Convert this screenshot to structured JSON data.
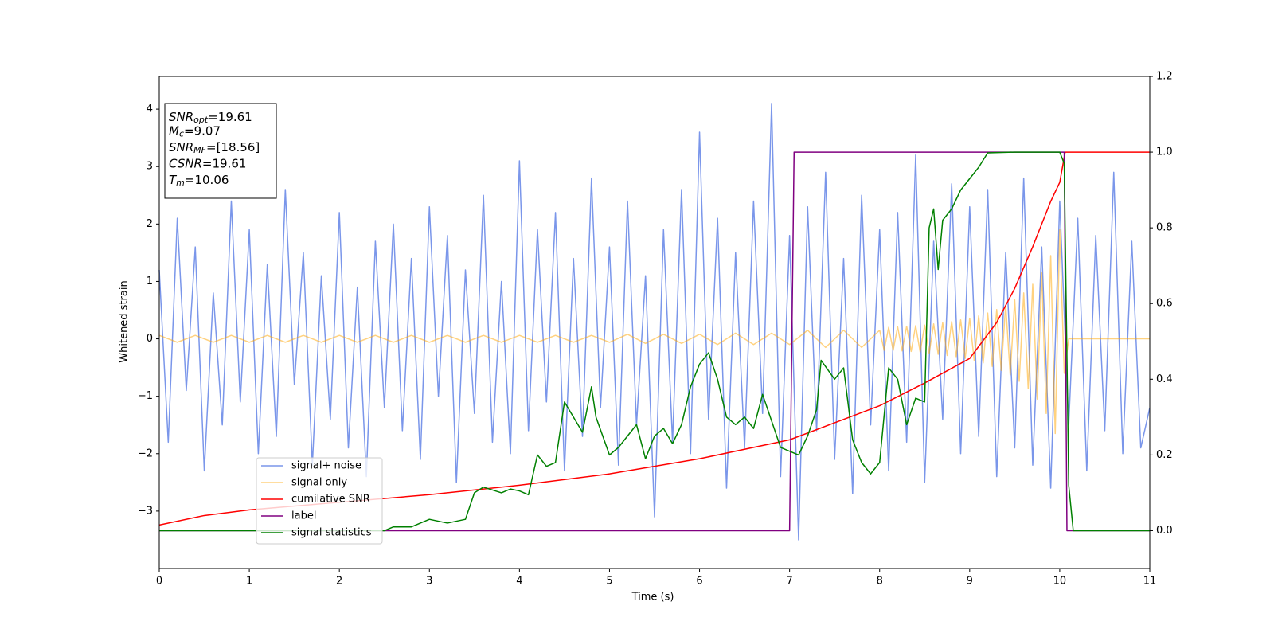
{
  "chart_data": {
    "type": "line",
    "xlabel": "Time (s)",
    "ylabel": "Whitened strain",
    "xlim": [
      0,
      11
    ],
    "xticks": [
      0,
      1,
      2,
      3,
      4,
      5,
      6,
      7,
      8,
      9,
      10,
      11
    ],
    "ylim": [
      -4,
      4.57
    ],
    "yticks": [
      {
        "value": -3,
        "label": "−3"
      },
      {
        "value": -2,
        "label": "−2"
      },
      {
        "value": -1,
        "label": "−1"
      },
      0,
      1,
      2,
      3,
      4
    ],
    "y2lim": [
      -0.1,
      1.2
    ],
    "y2ticks": [
      {
        "value": 0,
        "label": "0.0"
      },
      0.2,
      0.4,
      0.6,
      0.8,
      {
        "value": 1,
        "label": "1.0"
      },
      1.2
    ],
    "legend": "lower left",
    "annotation": [
      {
        "text": "SNR",
        "sub": "opt",
        "rest": "=19.61"
      },
      {
        "text": "M",
        "sub": "c",
        "rest": "=9.07"
      },
      {
        "text": "SNR",
        "sub": "MF",
        "rest": "=[18.56]"
      },
      {
        "text": "CSNR",
        "rest": "=19.61"
      },
      {
        "text": "T",
        "sub": "m",
        "rest": "=10.06"
      }
    ],
    "series": [
      {
        "name": "signal+ noise",
        "color": "#4169e1",
        "x": [
          0,
          0.1,
          0.2,
          0.3,
          0.4,
          0.5,
          0.6,
          0.7,
          0.8,
          0.9,
          1,
          1.1,
          1.2,
          1.3,
          1.4,
          1.5,
          1.6,
          1.7,
          1.8,
          1.9,
          2,
          2.1,
          2.2,
          2.3,
          2.4,
          2.5,
          2.6,
          2.7,
          2.8,
          2.9,
          3,
          3.1,
          3.2,
          3.3,
          3.4,
          3.5,
          3.6,
          3.7,
          3.8,
          3.9,
          4,
          4.1,
          4.2,
          4.3,
          4.4,
          4.5,
          4.6,
          4.7,
          4.8,
          4.9,
          5,
          5.1,
          5.2,
          5.3,
          5.4,
          5.5,
          5.6,
          5.7,
          5.8,
          5.9,
          6,
          6.1,
          6.2,
          6.3,
          6.4,
          6.5,
          6.6,
          6.7,
          6.8,
          6.9,
          7,
          7.1,
          7.2,
          7.3,
          7.4,
          7.5,
          7.6,
          7.7,
          7.8,
          7.9,
          8,
          8.1,
          8.2,
          8.3,
          8.4,
          8.5,
          8.6,
          8.7,
          8.8,
          8.9,
          9,
          9.1,
          9.2,
          9.3,
          9.4,
          9.5,
          9.6,
          9.7,
          9.8,
          9.9,
          10,
          10.1,
          10.2,
          10.3,
          10.4,
          10.5,
          10.6,
          10.7,
          10.8,
          10.9,
          11
        ],
        "values": [
          1.2,
          -1.8,
          2.1,
          -0.9,
          1.6,
          -2.3,
          0.8,
          -1.5,
          2.4,
          -1.1,
          1.9,
          -2.0,
          1.3,
          -1.7,
          2.6,
          -0.8,
          1.5,
          -2.2,
          1.1,
          -1.4,
          2.2,
          -1.9,
          0.9,
          -2.4,
          1.7,
          -1.2,
          2.0,
          -1.6,
          1.4,
          -2.1,
          2.3,
          -1.0,
          1.8,
          -2.5,
          1.2,
          -1.3,
          2.5,
          -1.8,
          1.0,
          -2.0,
          3.1,
          -1.6,
          1.9,
          -1.1,
          2.2,
          -2.3,
          1.4,
          -1.7,
          2.8,
          -1.2,
          1.6,
          -2.2,
          2.4,
          -1.5,
          1.1,
          -3.1,
          1.9,
          -1.8,
          2.6,
          -2.0,
          3.6,
          -1.4,
          2.1,
          -2.6,
          1.5,
          -1.9,
          2.4,
          -1.3,
          4.1,
          -2.4,
          1.8,
          -3.5,
          2.3,
          -1.6,
          2.9,
          -2.1,
          1.4,
          -2.7,
          2.5,
          -1.5,
          1.9,
          -2.3,
          2.2,
          -1.8,
          3.2,
          -2.5,
          1.7,
          -1.4,
          2.7,
          -2.0,
          2.3,
          -1.7,
          2.6,
          -2.4,
          1.5,
          -1.9,
          2.8,
          -2.2,
          1.6,
          -2.6,
          2.4,
          -1.5,
          2.1,
          -2.3,
          1.8,
          -1.6,
          2.9,
          -2.0,
          1.7,
          -1.9,
          -1.2
        ]
      },
      {
        "name": "signal only",
        "color": "#ffa500",
        "x": [
          0,
          0.2,
          0.4,
          0.6,
          0.8,
          1,
          1.2,
          1.4,
          1.6,
          1.8,
          2,
          2.2,
          2.4,
          2.6,
          2.8,
          3,
          3.2,
          3.4,
          3.6,
          3.8,
          4,
          4.2,
          4.4,
          4.6,
          4.8,
          5,
          5.2,
          5.4,
          5.6,
          5.8,
          6,
          6.2,
          6.4,
          6.6,
          6.8,
          7,
          7.2,
          7.4,
          7.6,
          7.8,
          8,
          8.05,
          8.1,
          8.15,
          8.2,
          8.25,
          8.3,
          8.35,
          8.4,
          8.45,
          8.5,
          8.55,
          8.6,
          8.65,
          8.7,
          8.75,
          8.8,
          8.85,
          8.9,
          8.95,
          9,
          9.05,
          9.1,
          9.15,
          9.2,
          9.25,
          9.3,
          9.35,
          9.4,
          9.45,
          9.5,
          9.55,
          9.6,
          9.65,
          9.7,
          9.75,
          9.8,
          9.85,
          9.9,
          9.95,
          10,
          10.05,
          10.1,
          11
        ],
        "values": [
          0.06,
          -0.06,
          0.06,
          -0.06,
          0.06,
          -0.06,
          0.06,
          -0.06,
          0.06,
          -0.06,
          0.06,
          -0.06,
          0.06,
          -0.06,
          0.06,
          -0.06,
          0.06,
          -0.06,
          0.06,
          -0.06,
          0.06,
          -0.06,
          0.06,
          -0.06,
          0.06,
          -0.06,
          0.08,
          -0.08,
          0.08,
          -0.08,
          0.08,
          -0.1,
          0.1,
          -0.1,
          0.1,
          -0.1,
          0.15,
          -0.15,
          0.15,
          -0.15,
          0.15,
          -0.2,
          0.2,
          -0.2,
          0.21,
          -0.21,
          0.22,
          -0.22,
          0.23,
          -0.23,
          0.24,
          -0.25,
          0.26,
          -0.27,
          0.28,
          -0.29,
          0.3,
          -0.31,
          0.33,
          -0.34,
          0.36,
          -0.38,
          0.4,
          -0.42,
          0.45,
          -0.48,
          0.51,
          -0.55,
          0.59,
          -0.63,
          0.68,
          -0.74,
          0.8,
          -0.87,
          0.95,
          -1.05,
          1.15,
          -1.3,
          1.45,
          -1.65,
          1.9,
          -0.6,
          0,
          0
        ]
      },
      {
        "name": "cumilative SNR",
        "color": "#ff0000",
        "axis": "y2",
        "x": [
          0,
          0.5,
          1,
          2,
          3,
          4,
          5,
          6,
          7,
          8,
          8.5,
          9,
          9.3,
          9.5,
          9.7,
          9.8,
          9.9,
          10,
          10.03,
          10.06,
          10.1,
          11
        ],
        "values": [
          0.015,
          0.04,
          0.055,
          0.075,
          0.095,
          0.12,
          0.15,
          0.19,
          0.24,
          0.33,
          0.39,
          0.455,
          0.55,
          0.64,
          0.75,
          0.81,
          0.87,
          0.92,
          0.96,
          1.0,
          1.0,
          1.0
        ]
      },
      {
        "name": "label",
        "color": "#800080",
        "axis": "y2",
        "x": [
          0,
          7.0,
          7.05,
          10.05,
          10.08,
          11
        ],
        "values": [
          0,
          0,
          1,
          1,
          0,
          0
        ]
      },
      {
        "name": "signal statistics",
        "color": "#008000",
        "axis": "y2",
        "x": [
          0,
          2.5,
          2.6,
          2.8,
          3.0,
          3.2,
          3.4,
          3.5,
          3.6,
          3.8,
          3.9,
          4.0,
          4.1,
          4.2,
          4.3,
          4.4,
          4.5,
          4.6,
          4.7,
          4.8,
          4.85,
          5.0,
          5.1,
          5.3,
          5.4,
          5.5,
          5.6,
          5.7,
          5.8,
          5.9,
          6.0,
          6.1,
          6.2,
          6.3,
          6.4,
          6.5,
          6.6,
          6.7,
          6.8,
          6.9,
          7.0,
          7.1,
          7.2,
          7.3,
          7.35,
          7.5,
          7.6,
          7.7,
          7.8,
          7.9,
          8.0,
          8.1,
          8.2,
          8.3,
          8.4,
          8.5,
          8.55,
          8.6,
          8.65,
          8.7,
          8.8,
          8.9,
          9.0,
          9.1,
          9.2,
          9.5,
          10.0,
          10.05,
          10.1,
          10.15,
          11
        ],
        "values": [
          0,
          0,
          0.01,
          0.01,
          0.03,
          0.02,
          0.03,
          0.1,
          0.115,
          0.1,
          0.11,
          0.105,
          0.095,
          0.2,
          0.17,
          0.18,
          0.34,
          0.3,
          0.26,
          0.38,
          0.3,
          0.2,
          0.22,
          0.28,
          0.19,
          0.25,
          0.27,
          0.23,
          0.28,
          0.38,
          0.44,
          0.47,
          0.4,
          0.3,
          0.28,
          0.3,
          0.27,
          0.36,
          0.29,
          0.22,
          0.21,
          0.2,
          0.25,
          0.32,
          0.45,
          0.4,
          0.43,
          0.24,
          0.18,
          0.15,
          0.18,
          0.43,
          0.4,
          0.28,
          0.35,
          0.34,
          0.8,
          0.85,
          0.69,
          0.82,
          0.85,
          0.9,
          0.93,
          0.96,
          0.998,
          1.0,
          1.0,
          0.97,
          0.12,
          0,
          0
        ]
      }
    ]
  }
}
